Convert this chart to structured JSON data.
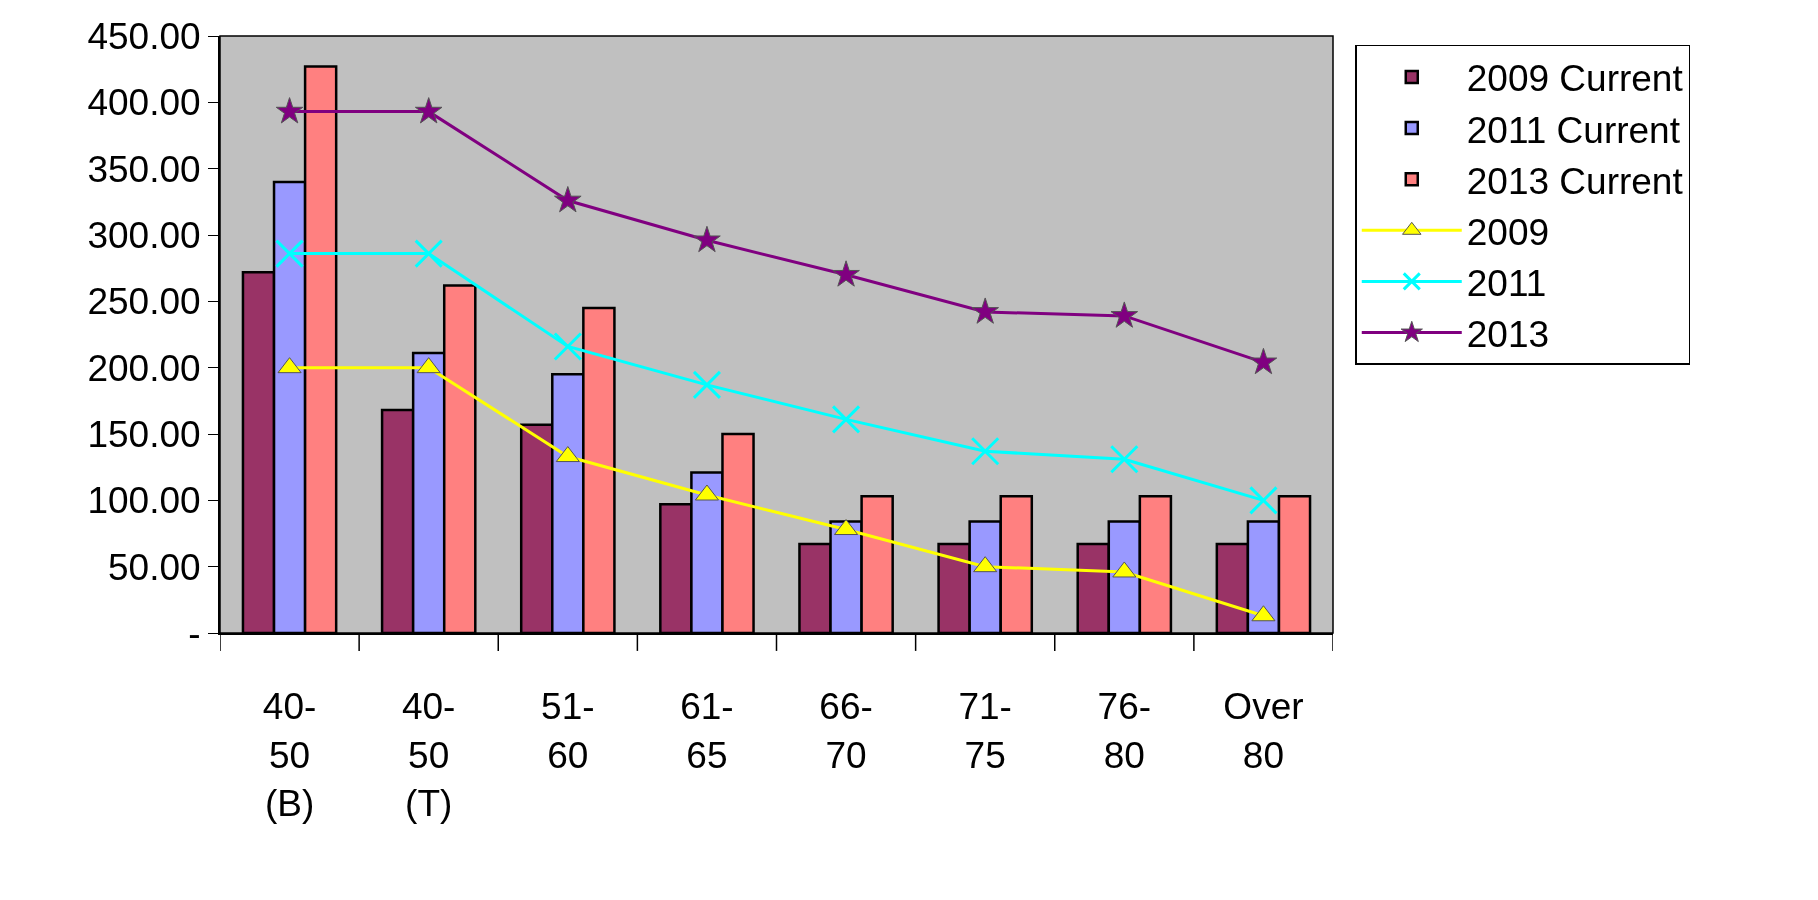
{
  "chart_data": {
    "type": "bar",
    "categories": [
      "40-50 (B)",
      "40-50 (T)",
      "51-60",
      "61-65",
      "66-70",
      "71-75",
      "76-80",
      "Over 80"
    ],
    "series": [
      {
        "name": "2009 Current",
        "color": "#993366",
        "values": [
          272,
          168,
          157,
          97,
          67,
          67,
          67,
          67
        ]
      },
      {
        "name": "2011 Current",
        "color": "#9999ff",
        "values": [
          340,
          211,
          195,
          121,
          84,
          84,
          84,
          84
        ]
      },
      {
        "name": "2013 Current",
        "color": "#ff8080",
        "values": [
          427,
          262,
          245,
          150,
          103,
          103,
          103,
          103
        ]
      },
      {
        "name": "2009",
        "type": "line",
        "marker": "triangle",
        "color": "#ffff00",
        "values": [
          200,
          200,
          133,
          104,
          78,
          50,
          46,
          13
        ]
      },
      {
        "name": "2011",
        "type": "line",
        "marker": "cross",
        "color": "#00ffff",
        "values": [
          286,
          286,
          216,
          187,
          161,
          137,
          131,
          100
        ]
      },
      {
        "name": "2013",
        "type": "line",
        "marker": "star",
        "color": "#800080",
        "values": [
          393,
          393,
          326,
          296,
          270,
          242,
          239,
          204
        ]
      }
    ],
    "ylim": [
      0,
      450
    ],
    "yticks": [
      {
        "value": 0,
        "label": "-"
      },
      {
        "value": 50,
        "label": "50.00"
      },
      {
        "value": 100,
        "label": "100.00"
      },
      {
        "value": 150,
        "label": "150.00"
      },
      {
        "value": 200,
        "label": "200.00"
      },
      {
        "value": 250,
        "label": "250.00"
      },
      {
        "value": 300,
        "label": "300.00"
      },
      {
        "value": 350,
        "label": "350.00"
      },
      {
        "value": 400,
        "label": "400.00"
      },
      {
        "value": 450,
        "label": "450.00"
      }
    ],
    "grid": false,
    "legend": "right"
  }
}
